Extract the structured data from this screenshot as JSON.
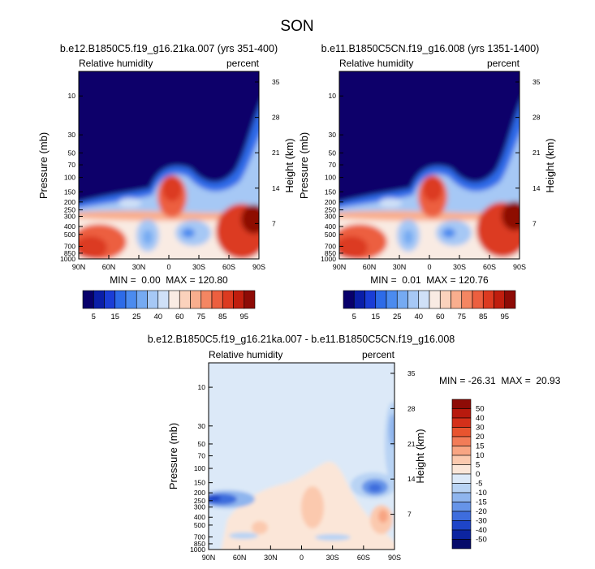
{
  "title": "SON",
  "chart_data": [
    {
      "type": "heatmap",
      "title": "b.e12.B1850C5.f19_g16.21ka.007 (yrs 351-400)",
      "left_label": "Relative humidity",
      "right_label": "percent",
      "ylabel": "Pressure (mb)",
      "ylabel_right": "Height (km)",
      "x_ticks": [
        "90N",
        "60N",
        "30N",
        "0",
        "30S",
        "60S",
        "90S"
      ],
      "y_ticks": [
        "10",
        "30",
        "50",
        "70",
        "100",
        "150",
        "200",
        "250",
        "300",
        "400",
        "500",
        "700",
        "850",
        "1000"
      ],
      "height_ticks": [
        "35",
        "28",
        "21",
        "14",
        "7"
      ],
      "min": 0.0,
      "max": 120.8,
      "stats_text": "MIN =  0.00  MAX = 120.80",
      "colorbar": {
        "orientation": "horizontal",
        "labels": [
          "5",
          "15",
          "25",
          "40",
          "60",
          "75",
          "85",
          "95"
        ],
        "levels": [
          5,
          10,
          15,
          20,
          25,
          30,
          40,
          50,
          60,
          70,
          75,
          80,
          85,
          90,
          95
        ],
        "colors": [
          "#08006b",
          "#0a1ea8",
          "#1a3dd6",
          "#2d6be8",
          "#4b8bef",
          "#75aaf2",
          "#a6c8f5",
          "#cfe0f7",
          "#f9ebe3",
          "#fbd2bc",
          "#f9ae8e",
          "#f48662",
          "#ec5f3f",
          "#dc3a20",
          "#c01e0e",
          "#8e0b06"
        ]
      }
    },
    {
      "type": "heatmap",
      "title": "b.e11.B1850C5CN.f19_g16.008 (yrs 1351-1400)",
      "left_label": "Relative humidity",
      "right_label": "percent",
      "ylabel": "Pressure (mb)",
      "ylabel_right": "Height (km)",
      "x_ticks": [
        "90N",
        "60N",
        "30N",
        "0",
        "30S",
        "60S",
        "90S"
      ],
      "y_ticks": [
        "10",
        "30",
        "50",
        "70",
        "100",
        "150",
        "200",
        "250",
        "300",
        "400",
        "500",
        "700",
        "850",
        "1000"
      ],
      "height_ticks": [
        "35",
        "28",
        "21",
        "14",
        "7"
      ],
      "min": 0.01,
      "max": 120.76,
      "stats_text": "MIN =  0.01  MAX = 120.76",
      "colorbar": {
        "orientation": "horizontal",
        "labels": [
          "5",
          "15",
          "25",
          "40",
          "60",
          "75",
          "85",
          "95"
        ],
        "levels": [
          5,
          10,
          15,
          20,
          25,
          30,
          40,
          50,
          60,
          70,
          75,
          80,
          85,
          90,
          95
        ],
        "colors": [
          "#08006b",
          "#0a1ea8",
          "#1a3dd6",
          "#2d6be8",
          "#4b8bef",
          "#75aaf2",
          "#a6c8f5",
          "#cfe0f7",
          "#f9ebe3",
          "#fbd2bc",
          "#f9ae8e",
          "#f48662",
          "#ec5f3f",
          "#dc3a20",
          "#c01e0e",
          "#8e0b06"
        ]
      }
    },
    {
      "type": "heatmap",
      "title": "b.e12.B1850C5.f19_g16.21ka.007 - b.e11.B1850C5CN.f19_g16.008",
      "left_label": "Relative humidity",
      "right_label": "percent",
      "ylabel": "Pressure (mb)",
      "ylabel_right": "Height (km)",
      "x_ticks": [
        "90N",
        "60N",
        "30N",
        "0",
        "30S",
        "60S",
        "90S"
      ],
      "y_ticks": [
        "10",
        "30",
        "50",
        "70",
        "100",
        "150",
        "200",
        "250",
        "300",
        "400",
        "500",
        "700",
        "850",
        "1000"
      ],
      "height_ticks": [
        "35",
        "28",
        "21",
        "14",
        "7"
      ],
      "min": -26.31,
      "max": 20.93,
      "stats_text": "MIN = -26.31  MAX =  20.93",
      "colorbar": {
        "orientation": "vertical",
        "labels": [
          "50",
          "40",
          "30",
          "20",
          "15",
          "10",
          "5",
          "0",
          "-5",
          "-10",
          "-15",
          "-20",
          "-30",
          "-40",
          "-50"
        ],
        "colors": [
          "#8e0b06",
          "#b81a0e",
          "#d4301a",
          "#e8542f",
          "#f27c58",
          "#f8a583",
          "#fbc9ae",
          "#fbe6d8",
          "#dce9f8",
          "#b8d3f4",
          "#8fb5ee",
          "#6694e8",
          "#3e6ddd",
          "#1e45c8",
          "#0c24a0",
          "#050a6a"
        ]
      }
    }
  ]
}
